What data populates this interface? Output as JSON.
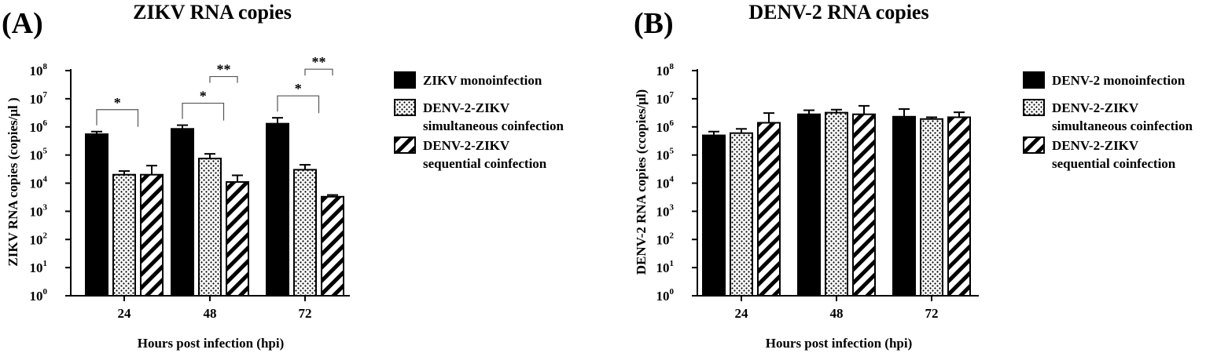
{
  "chart_data": [
    {
      "panel": "(A)",
      "title": "ZIKV RNA copies",
      "type": "bar",
      "log_scale": true,
      "log_base": 10,
      "ylim": [
        1,
        100000000
      ],
      "y_ticks": [
        {
          "exp": "0"
        },
        {
          "exp": "1"
        },
        {
          "exp": "2"
        },
        {
          "exp": "3"
        },
        {
          "exp": "4"
        },
        {
          "exp": "5"
        },
        {
          "exp": "6"
        },
        {
          "exp": "7"
        },
        {
          "exp": "8"
        }
      ],
      "tick_base": "10",
      "xlabel": "Hours post infection (hpi)",
      "ylabel": "ZIKV RNA copies (copies/μl )",
      "categories": [
        "24",
        "48",
        "72"
      ],
      "series": [
        {
          "name": [
            "ZIKV monoinfection"
          ],
          "pattern": "solid",
          "values": [
            550000,
            850000,
            1300000
          ],
          "errors": [
            680000,
            1150000,
            2100000
          ]
        },
        {
          "name": [
            "DENV-2-ZIKV",
            "simultaneous coinfection"
          ],
          "pattern": "dots",
          "values": [
            20000,
            75000,
            30000
          ],
          "errors": [
            27000,
            110000,
            45000
          ]
        },
        {
          "name": [
            "DENV-2-ZIKV",
            "sequential coinfection"
          ],
          "pattern": "stripes",
          "values": [
            20000,
            11000,
            3300
          ],
          "errors": [
            42000,
            19000,
            3800
          ]
        }
      ],
      "significance": [
        {
          "group": 0,
          "from": 0,
          "to": 1,
          "label": "*"
        },
        {
          "group": 1,
          "from": 0,
          "to": 1,
          "label": "*"
        },
        {
          "group": 1,
          "from": 1,
          "to": 2,
          "label": "**"
        },
        {
          "group": 2,
          "from": 0,
          "to": 1,
          "label": "*"
        },
        {
          "group": 2,
          "from": 1,
          "to": 2,
          "label": "**"
        }
      ],
      "legend_position": "right",
      "grid": false
    },
    {
      "panel": "(B)",
      "title": "DENV-2 RNA copies",
      "type": "bar",
      "log_scale": true,
      "log_base": 10,
      "ylim": [
        1,
        100000000
      ],
      "y_ticks": [
        {
          "exp": "0"
        },
        {
          "exp": "1"
        },
        {
          "exp": "2"
        },
        {
          "exp": "3"
        },
        {
          "exp": "4"
        },
        {
          "exp": "5"
        },
        {
          "exp": "6"
        },
        {
          "exp": "7"
        },
        {
          "exp": "8"
        }
      ],
      "tick_base": "10",
      "xlabel": "Hours post infection (hpi)",
      "ylabel": "DENV-2 RNA copies (ccopies/μl)",
      "categories": [
        "24",
        "48",
        "72"
      ],
      "series": [
        {
          "name": [
            "DENV-2 monoinfection"
          ],
          "pattern": "solid",
          "values": [
            500000,
            2800000,
            2300000
          ],
          "errors": [
            680000,
            3900000,
            4300000
          ]
        },
        {
          "name": [
            "DENV-2-ZIKV",
            "simultaneous coinfection"
          ],
          "pattern": "dots",
          "values": [
            600000,
            3200000,
            1900000
          ],
          "errors": [
            850000,
            4100000,
            2200000
          ]
        },
        {
          "name": [
            "DENV-2-ZIKV",
            "sequential coinfection"
          ],
          "pattern": "stripes",
          "values": [
            1400000,
            2800000,
            2200000
          ],
          "errors": [
            3100000,
            5600000,
            3300000
          ]
        }
      ],
      "significance": [],
      "legend_position": "right",
      "grid": false
    }
  ]
}
